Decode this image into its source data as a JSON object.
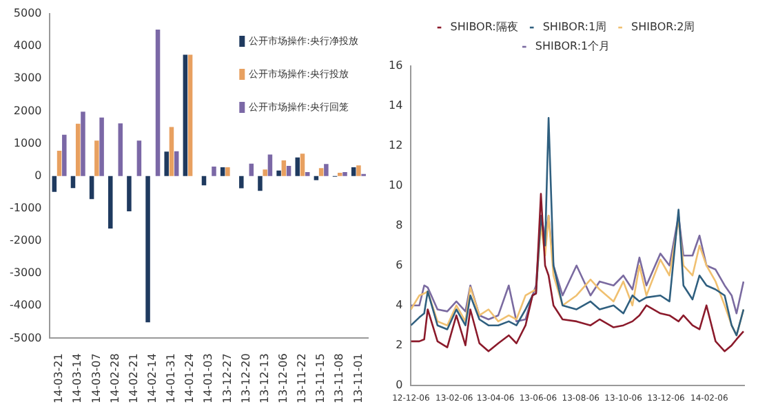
{
  "chart_data": [
    {
      "type": "bar",
      "categories": [
        "14-03-21",
        "14-03-14",
        "14-03-07",
        "14-02-28",
        "14-02-21",
        "14-02-14",
        "14-01-31",
        "14-01-24",
        "14-01-03",
        "13-12-27",
        "13-12-20",
        "13-12-13",
        "13-12-06",
        "13-11-22",
        "13-11-15",
        "13-11-08",
        "13-11-01"
      ],
      "series": [
        {
          "name": "公开市场操作:央行净投放",
          "color": "#1f3a5f",
          "values": [
            -490,
            -370,
            -710,
            -1620,
            -1090,
            -4510,
            750,
            3740,
            -290,
            270,
            -380,
            -460,
            170,
            570,
            -130,
            -20,
            270
          ]
        },
        {
          "name": "公开市场操作:央行投放",
          "color": "#e8a060",
          "values": [
            780,
            1610,
            1090,
            0,
            0,
            0,
            1510,
            3740,
            0,
            270,
            0,
            200,
            480,
            690,
            240,
            100,
            330
          ]
        },
        {
          "name": "公开市场操作:央行回笼",
          "color": "#7b68a6",
          "values": [
            1270,
            1980,
            1800,
            1620,
            1090,
            4510,
            760,
            0,
            290,
            0,
            380,
            660,
            310,
            120,
            370,
            120,
            60
          ]
        }
      ],
      "ylim": [
        -5000,
        5000
      ],
      "yticks": [
        -5000,
        -4000,
        -3000,
        -2000,
        -1000,
        0,
        1000,
        2000,
        3000,
        4000,
        5000
      ],
      "grid": false,
      "legend": "top right"
    },
    {
      "type": "line",
      "x": [
        "2012-12-06",
        "2012-12-18",
        "2012-12-25",
        "2012-12-30",
        "2013-01-13",
        "2013-01-27",
        "2013-02-09",
        "2013-02-22",
        "2013-03-01",
        "2013-03-14",
        "2013-03-27",
        "2013-04-10",
        "2013-04-25",
        "2013-05-06",
        "2013-05-19",
        "2013-05-29",
        "2013-06-03",
        "2013-06-10",
        "2013-06-16",
        "2013-06-21",
        "2013-06-28",
        "2013-07-11",
        "2013-07-31",
        "2013-08-20",
        "2013-09-02",
        "2013-09-22",
        "2013-10-06",
        "2013-10-19",
        "2013-10-29",
        "2013-11-08",
        "2013-11-28",
        "2013-12-11",
        "2013-12-24",
        "2013-12-31",
        "2014-01-13",
        "2014-01-23",
        "2014-02-02",
        "2014-02-15",
        "2014-02-28",
        "2014-03-10",
        "2014-03-17",
        "2014-03-27"
      ],
      "series": [
        {
          "name": "SHIBOR:隔夜",
          "color": "#8b1a2b",
          "values": [
            2.2,
            2.2,
            2.3,
            3.8,
            2.2,
            1.9,
            3.5,
            2.0,
            3.8,
            2.1,
            1.7,
            2.1,
            2.5,
            2.1,
            3.0,
            4.5,
            4.6,
            9.6,
            6.0,
            5.5,
            4.0,
            3.3,
            3.2,
            3.0,
            3.3,
            2.9,
            3.0,
            3.2,
            3.5,
            4.0,
            3.6,
            3.5,
            3.2,
            3.5,
            3.0,
            2.8,
            4.0,
            2.2,
            1.7,
            2.0,
            2.3,
            2.7
          ]
        },
        {
          "name": "SHIBOR:1周",
          "color": "#2f5f7f",
          "values": [
            3.0,
            3.4,
            3.6,
            4.7,
            3.0,
            2.8,
            3.8,
            3.0,
            4.5,
            3.3,
            3.0,
            3.0,
            3.2,
            3.0,
            3.8,
            4.5,
            4.6,
            8.5,
            7.0,
            13.4,
            6.0,
            4.0,
            3.8,
            4.2,
            3.8,
            4.0,
            3.6,
            4.5,
            4.2,
            4.4,
            4.5,
            4.2,
            8.8,
            5.0,
            4.3,
            5.5,
            5.0,
            4.8,
            4.5,
            3.0,
            2.5,
            3.8
          ]
        },
        {
          "name": "SHIBOR:2周",
          "color": "#f0c070",
          "values": [
            3.8,
            4.5,
            4.6,
            4.7,
            3.2,
            3.0,
            4.0,
            3.2,
            4.9,
            3.5,
            3.8,
            3.2,
            3.5,
            3.3,
            4.5,
            4.7,
            4.8,
            8.0,
            6.5,
            8.5,
            5.5,
            4.0,
            4.5,
            5.3,
            4.8,
            4.2,
            5.2,
            4.0,
            6.0,
            4.5,
            6.3,
            5.5,
            8.3,
            6.0,
            5.5,
            7.0,
            6.0,
            5.2,
            4.0,
            3.0,
            2.5,
            3.8
          ]
        },
        {
          "name": "SHIBOR:1个月",
          "color": "#7a6aa0",
          "values": [
            4.0,
            4.0,
            5.0,
            4.9,
            3.8,
            3.7,
            4.2,
            3.7,
            5.0,
            3.5,
            3.3,
            3.5,
            5.0,
            3.2,
            3.3,
            4.5,
            5.0,
            8.5,
            7.5,
            8.5,
            6.0,
            4.5,
            6.0,
            4.5,
            5.2,
            5.0,
            5.5,
            4.8,
            6.4,
            5.0,
            6.6,
            6.0,
            8.5,
            6.5,
            6.5,
            7.5,
            6.0,
            5.8,
            5.0,
            4.5,
            3.6,
            5.2
          ]
        }
      ],
      "xlim": [
        "2012-12-06",
        "2014-03-28"
      ],
      "xticks": [
        {
          "value": "2012-12-06",
          "label": "12-12-06"
        },
        {
          "value": "2013-02-06",
          "label": "13-02-06"
        },
        {
          "value": "2013-04-06",
          "label": "13-04-06"
        },
        {
          "value": "2013-06-06",
          "label": "13-06-06"
        },
        {
          "value": "2013-08-06",
          "label": "13-08-06"
        },
        {
          "value": "2013-10-06",
          "label": "13-10-06"
        },
        {
          "value": "2013-12-06",
          "label": "13-12-06"
        },
        {
          "value": "2014-02-06",
          "label": "14-02-06"
        }
      ],
      "ylim": [
        0,
        16
      ],
      "yticks": [
        0,
        2,
        4,
        6,
        8,
        10,
        12,
        14,
        16
      ],
      "grid": false,
      "legend": "top",
      "marker": "none",
      "line_style": "solid"
    }
  ]
}
